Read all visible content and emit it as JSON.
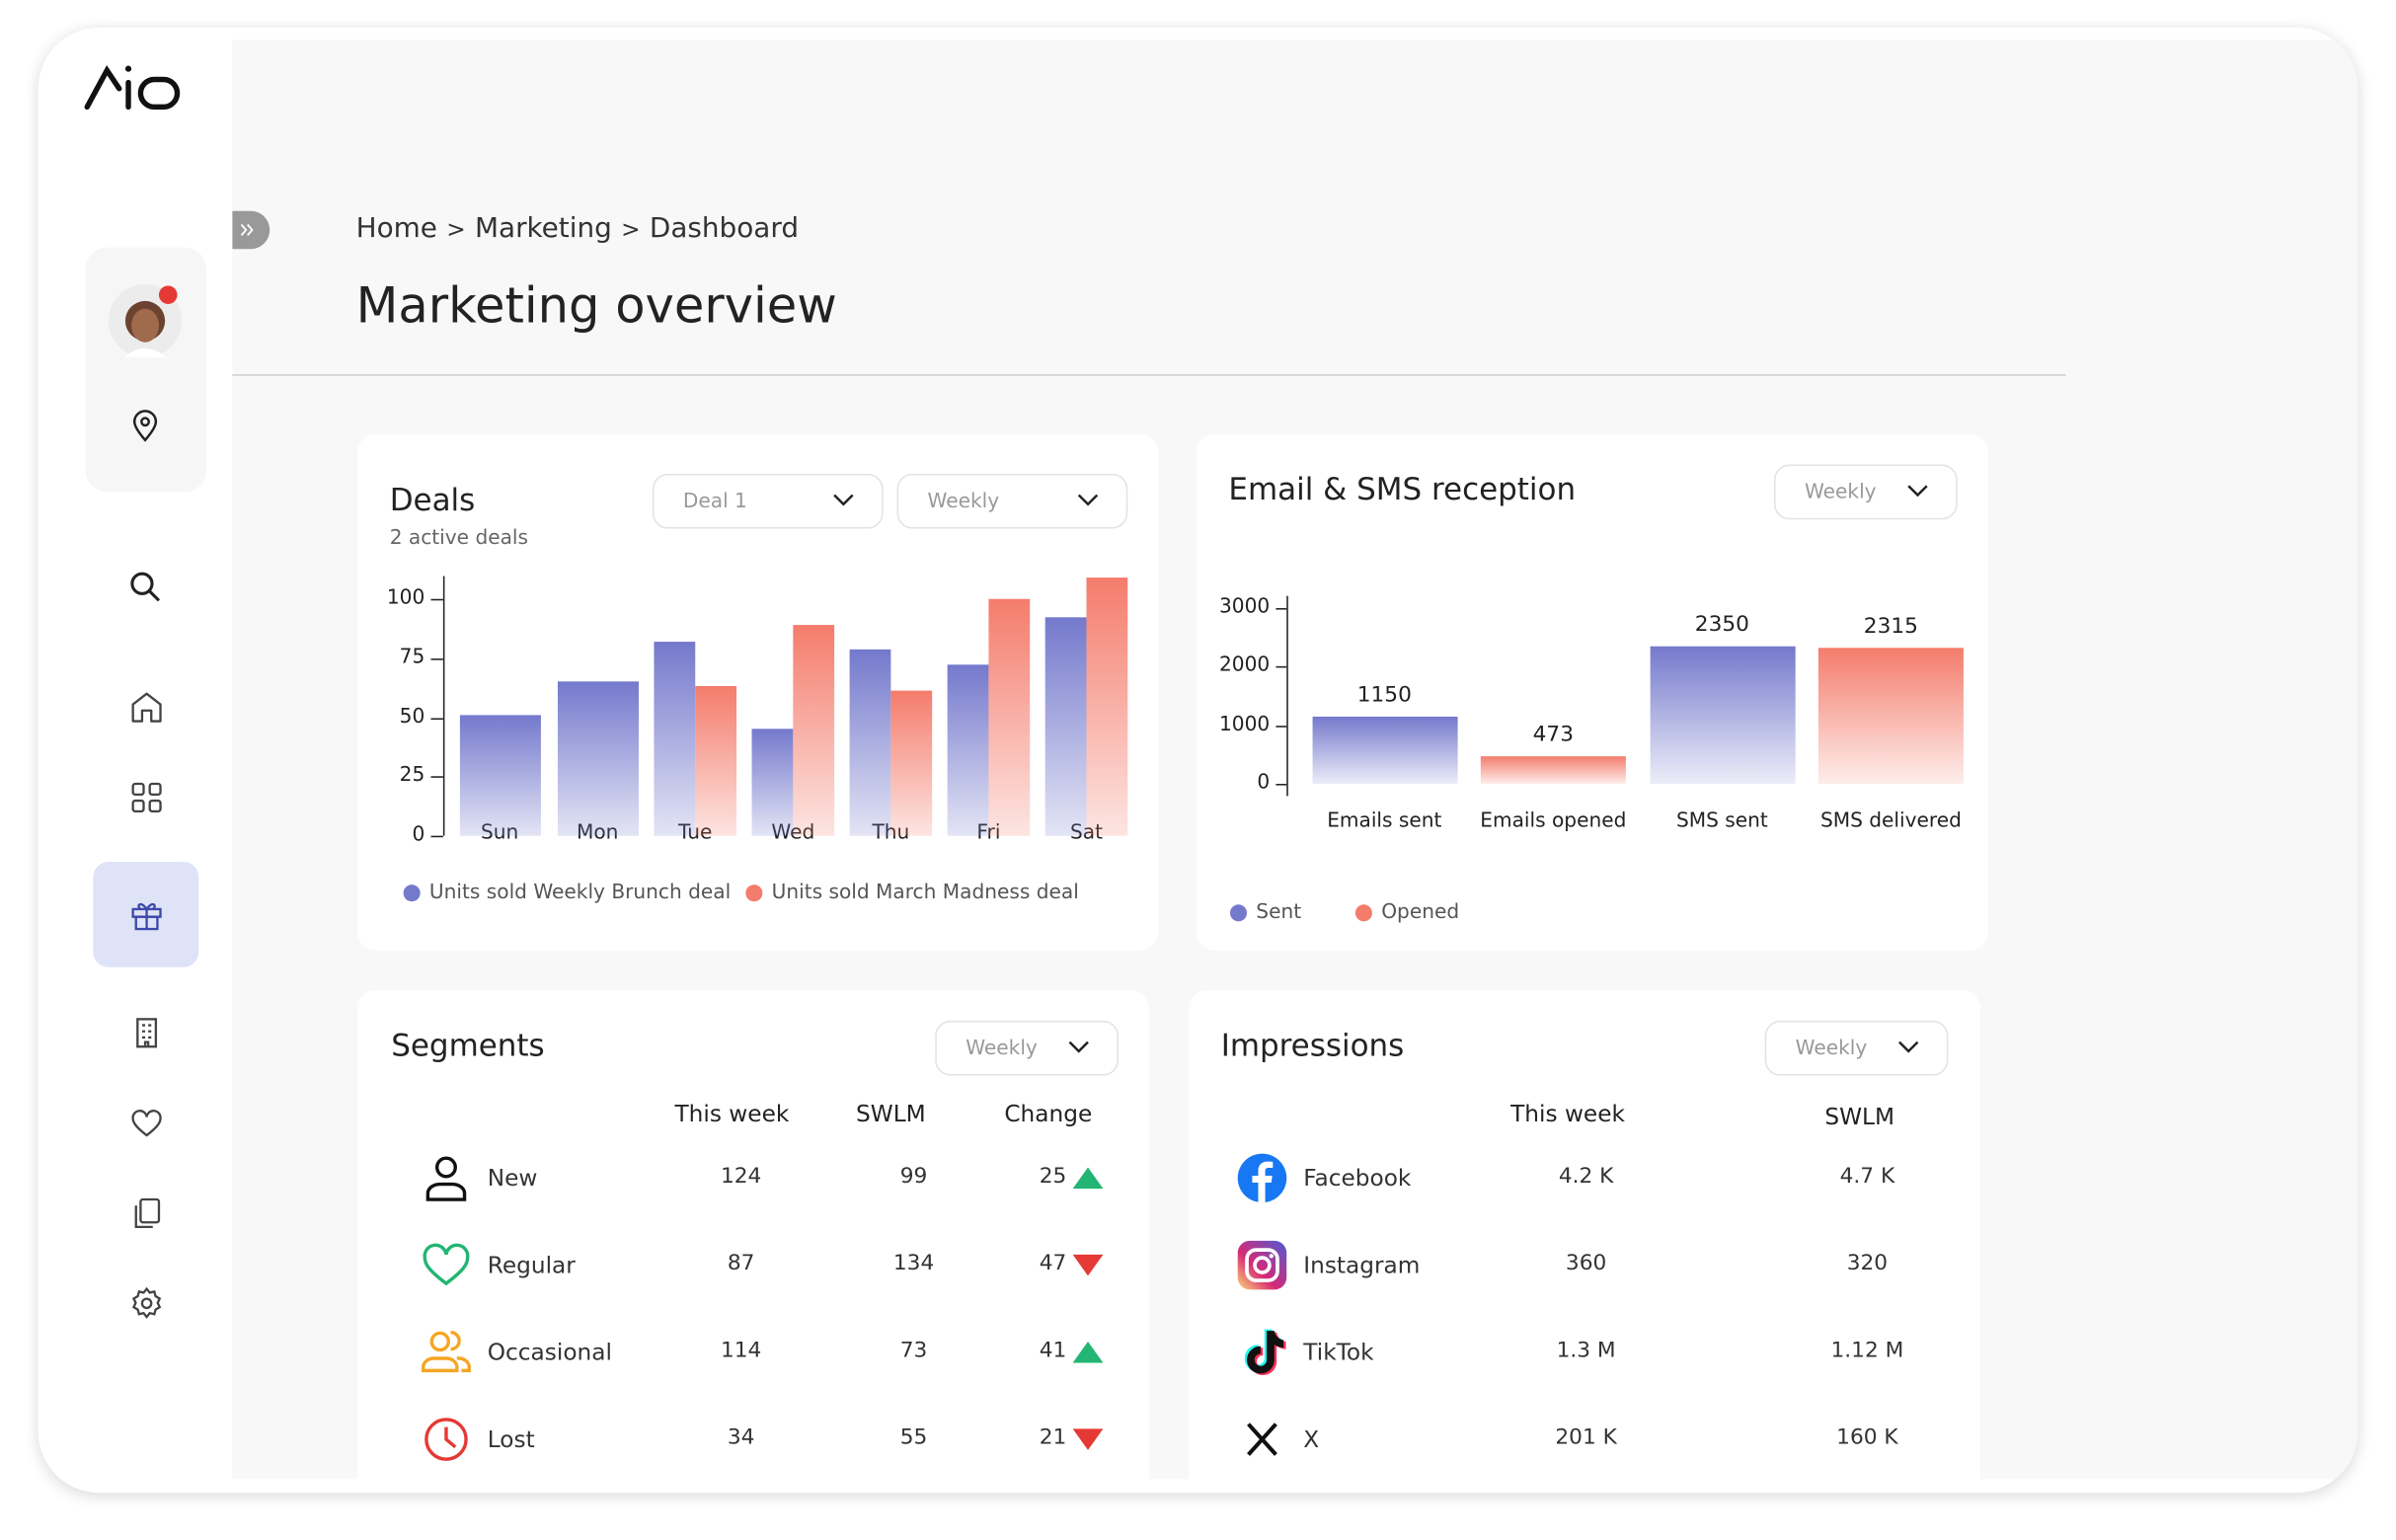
{
  "breadcrumb": {
    "items": [
      "Home",
      "Marketing",
      "Dashboard"
    ],
    "separator": ">"
  },
  "page_title": "Marketing overview",
  "deals": {
    "title": "Deals",
    "subtitle": "2 active deals",
    "dropdowns": [
      "Deal 1",
      "Weekly"
    ],
    "chart": {
      "type": "bar",
      "categories": [
        "Sun",
        "Mon",
        "Tue",
        "Wed",
        "Thu",
        "Fri",
        "Sat"
      ],
      "series": [
        {
          "name": "Units sold Weekly Brunch deal",
          "color": "#7479cc",
          "values": [
            51,
            65,
            82,
            45,
            79,
            72,
            92
          ]
        },
        {
          "name": "Units sold March Madness deal",
          "color": "#f47c6c",
          "values": [
            null,
            null,
            63,
            89,
            61,
            100,
            109
          ]
        }
      ],
      "ylim": [
        0,
        110
      ],
      "yticks": [
        0,
        25,
        50,
        75,
        100
      ]
    }
  },
  "email_sms": {
    "title": "Email & SMS reception",
    "dropdown": "Weekly",
    "chart": {
      "type": "bar",
      "categories": [
        "Emails sent",
        "Emails opened",
        "SMS sent",
        "SMS delivered"
      ],
      "series": [
        {
          "name": "Sent",
          "color": "#7479cc",
          "values": [
            1150,
            null,
            2350,
            null
          ]
        },
        {
          "name": "Opened",
          "color": "#f47c6c",
          "values": [
            null,
            473,
            null,
            2315
          ]
        }
      ],
      "ylim": [
        0,
        3000
      ],
      "yticks": [
        0,
        1000,
        2000,
        3000
      ]
    }
  },
  "segments": {
    "title": "Segments",
    "dropdown": "Weekly",
    "headers": [
      "This week",
      "SWLM",
      "Change"
    ],
    "rows": [
      [
        "New",
        124,
        99,
        25
      ],
      [
        "Regular",
        87,
        134,
        47
      ],
      [
        "Occasional",
        114,
        73,
        41
      ],
      [
        "Lost",
        34,
        55,
        21
      ]
    ],
    "change_trend": [
      "up",
      "down",
      "up",
      "down"
    ]
  },
  "impressions": {
    "title": "Impressions",
    "dropdown": "Weekly",
    "headers": [
      "This week",
      "SWLM"
    ],
    "rows": [
      [
        "Facebook",
        "4.2 K",
        "4.7 K"
      ],
      [
        "Instagram",
        "360",
        "320"
      ],
      [
        "TikTok",
        "1.3 M",
        "1.12 M"
      ],
      [
        "X",
        "201 K",
        "160 K"
      ]
    ]
  }
}
